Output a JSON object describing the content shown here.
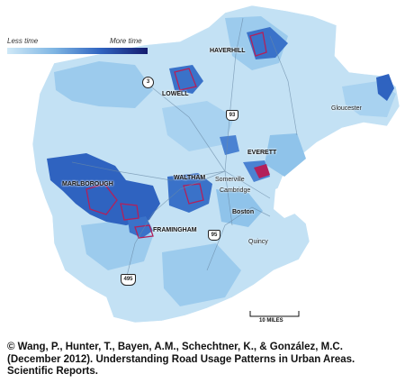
{
  "legend": {
    "less_label": "Less time",
    "more_label": "More time"
  },
  "colors": {
    "water": "#ffffff",
    "land_light": "#c3e1f4",
    "land_mid": "#8fc3ea",
    "land_dark": "#2f63c0",
    "land_darkest": "#1b2a8a",
    "highlight": "#b3205a",
    "border": "#ffffff"
  },
  "cities": {
    "haverhill": "HAVERHILL",
    "lowell": "LOWELL",
    "gloucester": "Gloucester",
    "everett": "EVERETT",
    "somerville": "Somerville",
    "cambridge": "Cambridge",
    "waltham": "WALTHAM",
    "marlborough": "MARLBOROUGH",
    "boston": "Boston",
    "framingham": "FRAMINGHAM",
    "quincy": "Quincy"
  },
  "highways": {
    "route3": "3",
    "i93": "93",
    "i95": "95",
    "i495": "495"
  },
  "scale": {
    "label": "10 MILES"
  },
  "credit": {
    "line1": "© Wang, P., Hunter, T., Bayen, A.M., Schechtner, K., & González, M.C.",
    "line2": "(December 2012). Understanding Road Usage Patterns in Urban Areas.",
    "line3": "Scientific Reports."
  }
}
